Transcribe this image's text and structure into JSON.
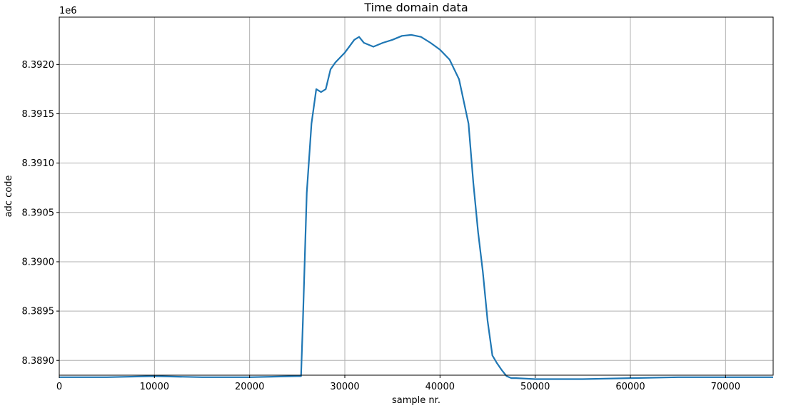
{
  "chart_data": {
    "type": "line",
    "title": "Time domain data",
    "xlabel": "sample nr.",
    "ylabel": "adc code",
    "y_offset_label": "1e6",
    "xlim": [
      0,
      75000
    ],
    "ylim": [
      8.38885,
      8.39248
    ],
    "grid": true,
    "x_ticks": [
      0,
      10000,
      20000,
      30000,
      40000,
      50000,
      60000,
      70000
    ],
    "x_tick_labels": [
      "0",
      "10000",
      "20000",
      "30000",
      "40000",
      "50000",
      "60000",
      "70000"
    ],
    "y_ticks": [
      8.389,
      8.3895,
      8.39,
      8.3905,
      8.391,
      8.3915,
      8.392
    ],
    "y_tick_labels": [
      "8.3890",
      "8.3895",
      "8.3900",
      "8.3905",
      "8.3910",
      "8.3915",
      "8.3920"
    ],
    "line_color": "#1f77b4",
    "series": [
      {
        "x": [
          0,
          5000,
          10000,
          15000,
          20000,
          25000,
          25400,
          25600,
          26000,
          26500,
          27000,
          27500,
          28000,
          28500,
          29000,
          30000,
          31000,
          31500,
          32000,
          33000,
          34000,
          35000,
          36000,
          37000,
          38000,
          39000,
          40000,
          41000,
          42000,
          43000,
          43500,
          44000,
          44500,
          45000,
          45500,
          46000,
          46500,
          47000,
          47500,
          48000,
          50000,
          55000,
          60000,
          65000,
          70000,
          75000
        ],
        "y": [
          8.38883,
          8.38883,
          8.38884,
          8.38883,
          8.38883,
          8.38884,
          8.38884,
          8.3894,
          8.3907,
          8.3914,
          8.39175,
          8.39172,
          8.39175,
          8.39195,
          8.39202,
          8.39212,
          8.39225,
          8.39228,
          8.39222,
          8.39218,
          8.39222,
          8.39225,
          8.39229,
          8.3923,
          8.39228,
          8.39222,
          8.39215,
          8.39205,
          8.39185,
          8.3914,
          8.3908,
          8.3903,
          8.3899,
          8.3894,
          8.38905,
          8.38897,
          8.3889,
          8.38884,
          8.38882,
          8.38882,
          8.38881,
          8.38881,
          8.38882,
          8.38883,
          8.38883,
          8.38883
        ]
      }
    ]
  }
}
